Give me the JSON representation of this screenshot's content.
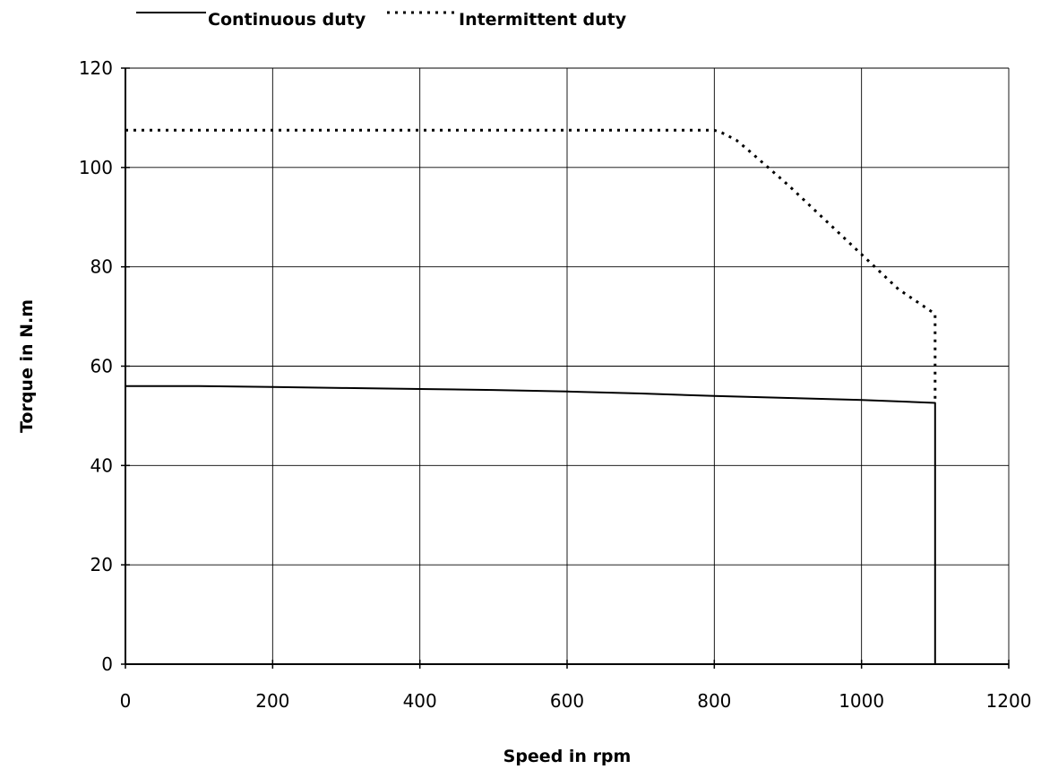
{
  "chart_data": {
    "type": "line",
    "xlabel": "Speed in rpm",
    "ylabel": "Torque in N.m",
    "xlim": [
      0,
      1200
    ],
    "ylim": [
      0,
      120
    ],
    "xticks": [
      0,
      200,
      400,
      600,
      800,
      1000,
      1200
    ],
    "yticks": [
      0,
      20,
      40,
      60,
      80,
      100,
      120
    ],
    "grid": true,
    "legend_position": "top-left",
    "series": [
      {
        "name": "Continuous duty",
        "style": "solid",
        "color": "#000000",
        "x": [
          0,
          100,
          200,
          300,
          400,
          500,
          600,
          700,
          800,
          900,
          1000,
          1100,
          1100
        ],
        "y": [
          56,
          56,
          55.8,
          55.6,
          55.4,
          55.2,
          54.9,
          54.5,
          54,
          53.6,
          53.2,
          52.6,
          0
        ]
      },
      {
        "name": "Intermittent duty",
        "style": "dotted",
        "color": "#000000",
        "x": [
          0,
          800,
          810,
          830,
          850,
          900,
          950,
          1000,
          1050,
          1100,
          1100
        ],
        "y": [
          107.5,
          107.5,
          107,
          105.5,
          103,
          96.5,
          89.5,
          82.5,
          75.5,
          70.5,
          52.6
        ]
      }
    ]
  }
}
